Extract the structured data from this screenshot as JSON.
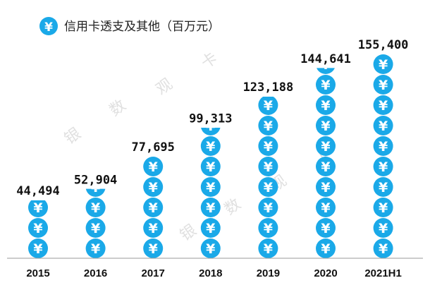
{
  "legend": {
    "icon": "yuan-coin-icon",
    "label": "信用卡透支及其他（百万元）"
  },
  "watermark": {
    "chars": [
      "银",
      "数",
      "观",
      "卡"
    ]
  },
  "colors": {
    "coin": "#1aa9e8",
    "coin_symbol": "#ffffff",
    "axis": "#999999",
    "text": "#111111"
  },
  "chart_data": {
    "type": "bar",
    "title": "",
    "xlabel": "",
    "ylabel": "",
    "unit_per_coin": 15540,
    "categories": [
      "2015",
      "2016",
      "2017",
      "2018",
      "2019",
      "2020",
      "2021H1"
    ],
    "values": [
      44494,
      52904,
      77695,
      99313,
      123188,
      144641,
      155400
    ],
    "value_labels": [
      "44,494",
      "52,904",
      "77,695",
      "99,313",
      "123,188",
      "144,641",
      "155,400"
    ],
    "series": [
      {
        "name": "信用卡透支及其他（百万元）",
        "values": [
          44494,
          52904,
          77695,
          99313,
          123188,
          144641,
          155400
        ]
      }
    ],
    "ylim": [
      0,
      155400
    ],
    "grid": false,
    "legend_position": "top-left"
  }
}
